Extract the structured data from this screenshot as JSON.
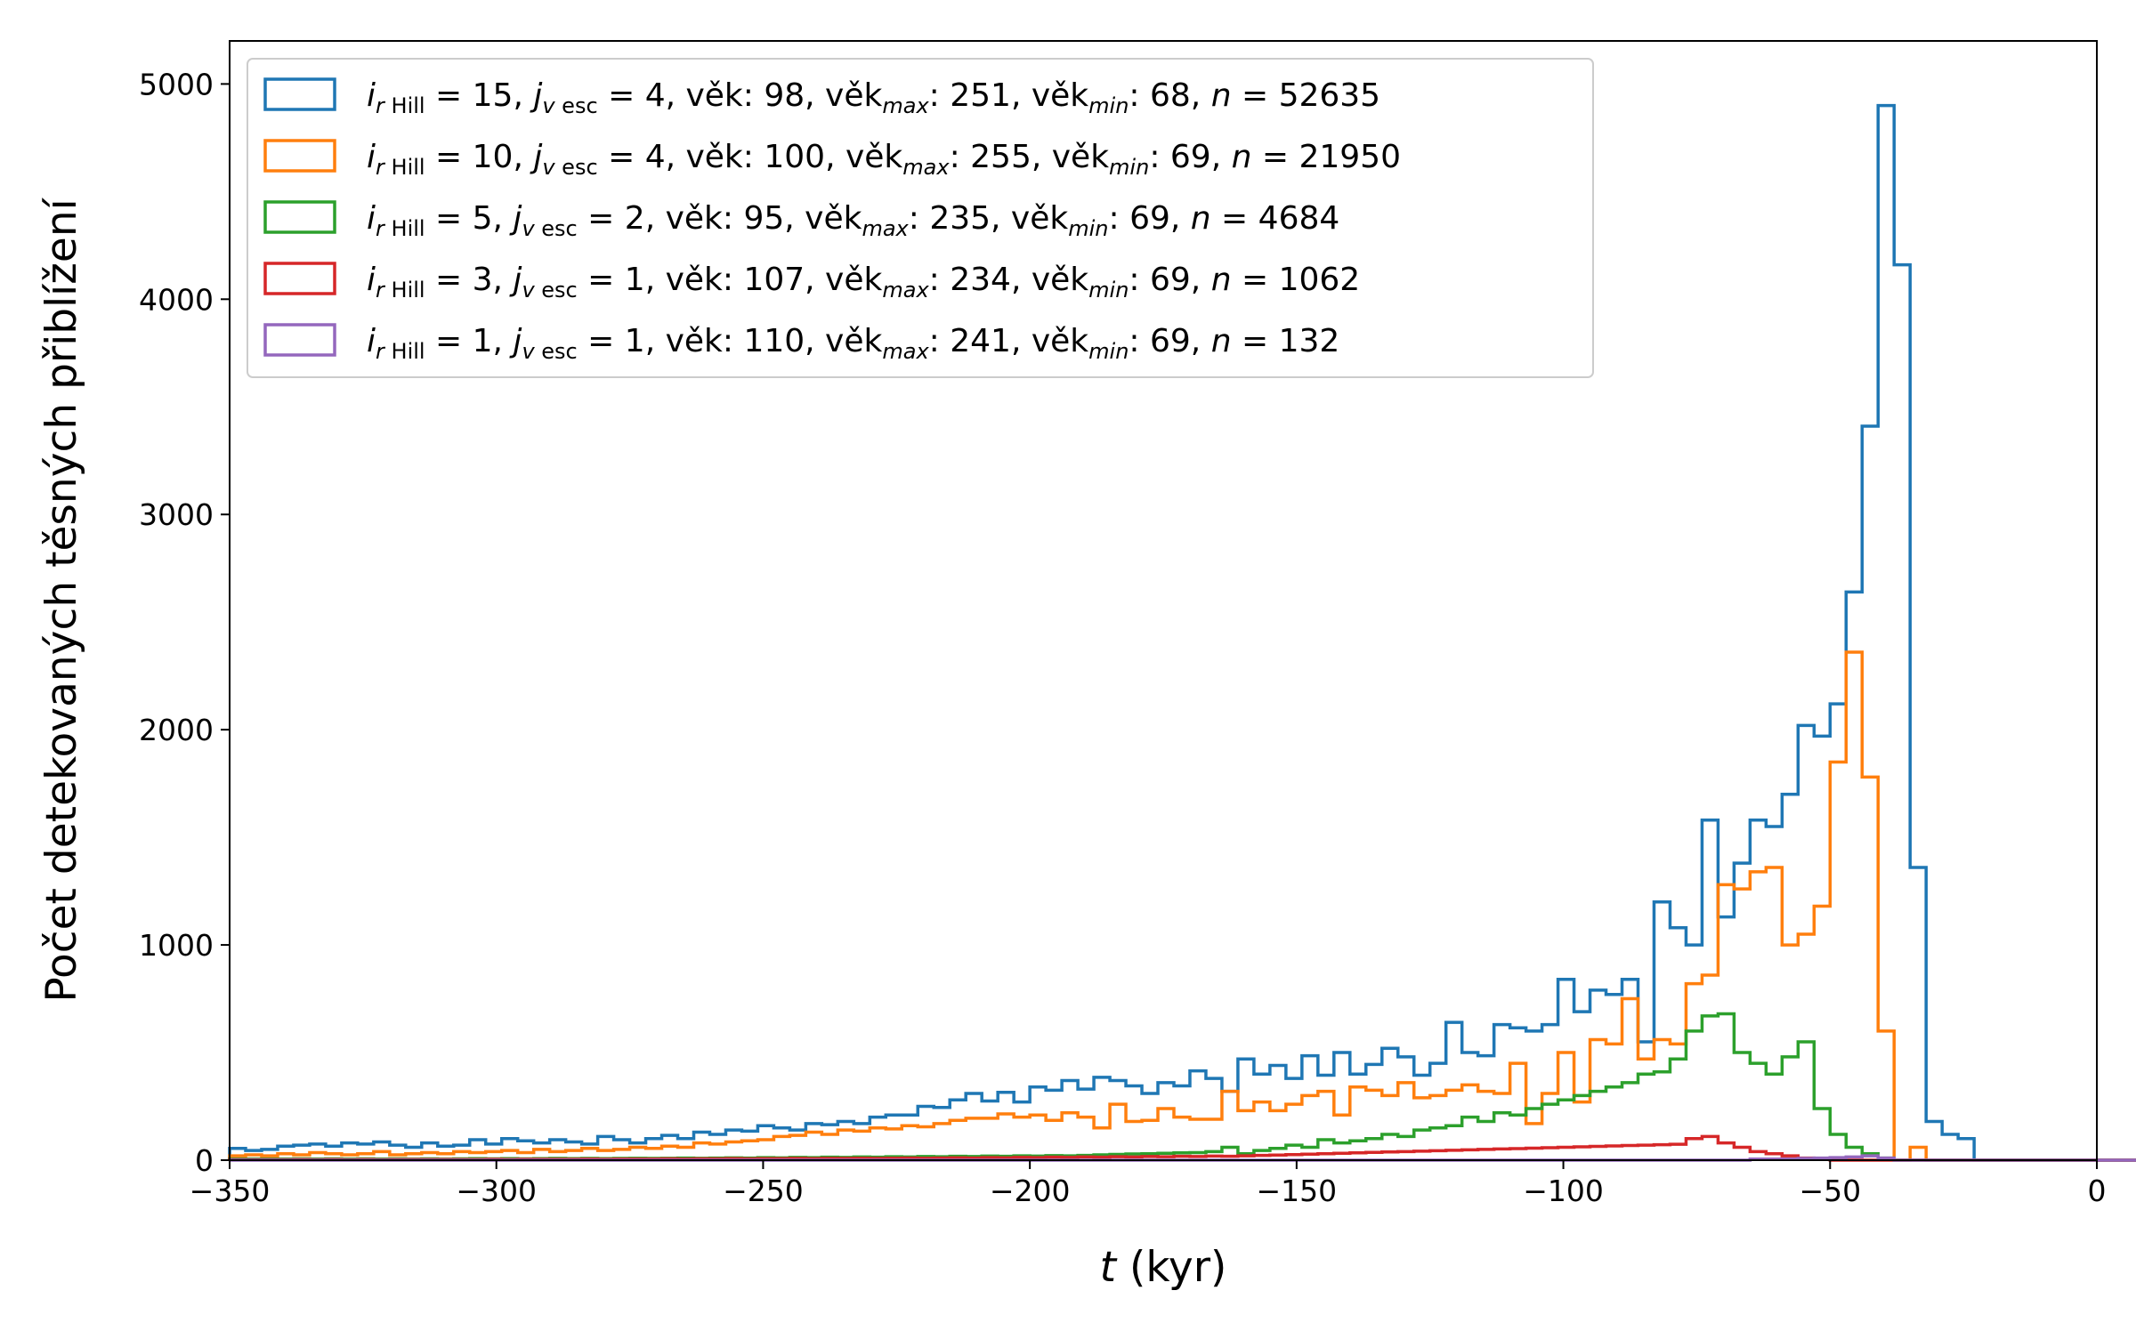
{
  "chart_data": {
    "type": "histogram",
    "xlabel_var": "t",
    "xlabel_unit": " (kyr)",
    "ylabel": "Počet detekovaných těsných přiblížení",
    "xlim": [
      -350,
      0
    ],
    "ylim": [
      0,
      5200
    ],
    "xticks": [
      -350,
      -300,
      -250,
      -200,
      -150,
      -100,
      -50,
      0
    ],
    "yticks": [
      0,
      1000,
      2000,
      3000,
      4000,
      5000
    ],
    "xtick_labels": [
      "−350",
      "−300",
      "−250",
      "−200",
      "−150",
      "−100",
      "−50",
      "0"
    ],
    "ytick_labels": [
      "0",
      "1000",
      "2000",
      "3000",
      "4000",
      "5000"
    ],
    "legend_position": "upper-left",
    "bin_start": -350,
    "bin_width": 3,
    "series": [
      {
        "name": "i_rHill = 15, j_vesc = 4, věk: 98, věk_max: 251, věk_min: 68, n = 52635",
        "i": "15",
        "j": "4",
        "vek": " 98",
        "vek_max": "251",
        "vek_min": "68",
        "n": "52635",
        "color": "#1f77b4",
        "values": [
          55,
          45,
          50,
          65,
          70,
          75,
          65,
          80,
          75,
          85,
          70,
          60,
          80,
          65,
          70,
          95,
          75,
          100,
          90,
          80,
          95,
          85,
          75,
          110,
          95,
          80,
          100,
          115,
          100,
          130,
          120,
          140,
          135,
          160,
          150,
          140,
          170,
          165,
          180,
          170,
          200,
          210,
          210,
          250,
          245,
          280,
          310,
          275,
          315,
          270,
          340,
          325,
          370,
          330,
          385,
          370,
          345,
          310,
          360,
          345,
          415,
          380,
          320,
          470,
          400,
          440,
          380,
          485,
          395,
          500,
          400,
          445,
          520,
          480,
          395,
          450,
          640,
          500,
          485,
          630,
          615,
          600,
          630,
          840,
          690,
          790,
          770,
          840,
          550,
          1200,
          1080,
          1000,
          1580,
          1130,
          1380,
          1580,
          1550,
          1700,
          2020,
          1970,
          2120,
          2640,
          3410,
          4900,
          4160,
          1360,
          180,
          120,
          100,
          0,
          0,
          0,
          0,
          0,
          0,
          0,
          0,
          0,
          0,
          0,
          0,
          0,
          0,
          0,
          0,
          0,
          0,
          0,
          0,
          0,
          0,
          0,
          0,
          0,
          0,
          0,
          0,
          0,
          0,
          0,
          0
        ]
      },
      {
        "name": "i_rHill = 10, j_vesc = 4, věk: 100, věk_max: 255, věk_min: 69, n = 21950",
        "i": "10",
        "j": "4",
        "vek": "100",
        "vek_max": "255",
        "vek_min": "69",
        "n": "21950",
        "color": "#ff7f0e",
        "values": [
          20,
          25,
          20,
          30,
          25,
          35,
          30,
          25,
          30,
          40,
          25,
          30,
          35,
          30,
          40,
          35,
          40,
          45,
          35,
          50,
          40,
          45,
          55,
          45,
          50,
          60,
          55,
          65,
          60,
          80,
          75,
          85,
          90,
          95,
          110,
          115,
          130,
          120,
          140,
          135,
          150,
          145,
          160,
          155,
          170,
          185,
          195,
          195,
          215,
          200,
          210,
          185,
          220,
          200,
          150,
          260,
          180,
          185,
          240,
          200,
          190,
          190,
          320,
          230,
          270,
          230,
          260,
          300,
          320,
          210,
          340,
          325,
          300,
          360,
          290,
          300,
          325,
          350,
          320,
          310,
          450,
          170,
          310,
          500,
          270,
          560,
          540,
          750,
          470,
          560,
          540,
          820,
          860,
          1280,
          1260,
          1340,
          1360,
          1000,
          1050,
          1180,
          1850,
          2360,
          1780,
          600,
          0,
          60,
          0,
          0,
          0,
          0,
          0,
          0,
          0,
          0,
          0,
          0,
          0,
          0,
          0,
          0,
          0,
          0,
          0,
          0,
          0,
          0,
          0,
          0,
          0,
          0,
          0,
          0,
          0,
          0,
          0,
          0,
          0,
          0,
          0,
          0,
          0,
          0,
          0,
          0,
          0,
          0
        ]
      },
      {
        "name": "i_rHill = 5, j_vesc = 2, věk: 95, věk_max: 235, věk_min: 69, n = 4684",
        "i": " 5",
        "j": "2",
        "vek": " 95",
        "vek_max": "235",
        "vek_min": "69",
        "n": "4684",
        "color": "#2ca02c",
        "values": [
          5,
          5,
          5,
          5,
          6,
          5,
          6,
          5,
          6,
          5,
          6,
          5,
          6,
          5,
          6,
          7,
          6,
          7,
          6,
          7,
          8,
          7,
          8,
          7,
          8,
          9,
          8,
          9,
          10,
          9,
          10,
          11,
          10,
          12,
          11,
          13,
          12,
          14,
          13,
          15,
          14,
          16,
          15,
          17,
          16,
          18,
          17,
          19,
          18,
          20,
          19,
          21,
          20,
          22,
          25,
          27,
          29,
          30,
          32,
          34,
          35,
          40,
          60,
          30,
          45,
          55,
          70,
          60,
          95,
          80,
          90,
          100,
          120,
          110,
          140,
          150,
          160,
          200,
          180,
          220,
          210,
          240,
          260,
          280,
          300,
          320,
          340,
          360,
          400,
          410,
          470,
          600,
          670,
          680,
          500,
          450,
          400,
          480,
          550,
          240,
          120,
          60,
          30,
          10,
          0,
          0,
          0,
          0,
          0,
          0,
          0,
          0,
          0,
          0,
          0,
          0,
          0,
          0,
          0,
          0,
          0,
          0,
          0,
          0,
          0,
          0,
          0,
          0,
          0,
          0,
          0,
          0,
          0,
          0,
          0,
          0,
          0,
          0,
          0,
          0,
          0,
          0,
          0,
          0
        ]
      },
      {
        "name": "i_rHill = 3, j_vesc = 1, věk: 107, věk_max: 234, věk_min: 69, n = 1062",
        "i": " 3",
        "j": "1",
        "vek": "107",
        "vek_max": "234",
        "vek_min": "69",
        "n": "1062",
        "color": "#d62728",
        "values": [
          2,
          2,
          2,
          2,
          3,
          2,
          3,
          2,
          3,
          2,
          3,
          3,
          3,
          3,
          3,
          3,
          4,
          3,
          4,
          4,
          4,
          4,
          5,
          4,
          5,
          5,
          5,
          6,
          5,
          6,
          6,
          7,
          6,
          7,
          7,
          8,
          7,
          8,
          8,
          9,
          8,
          9,
          10,
          9,
          10,
          11,
          10,
          12,
          11,
          13,
          12,
          14,
          13,
          15,
          14,
          16,
          15,
          17,
          16,
          18,
          17,
          19,
          18,
          20,
          22,
          24,
          26,
          28,
          30,
          32,
          34,
          36,
          38,
          40,
          42,
          44,
          46,
          48,
          50,
          52,
          54,
          56,
          58,
          60,
          62,
          64,
          66,
          68,
          70,
          72,
          74,
          100,
          110,
          80,
          60,
          40,
          30,
          20,
          10,
          5,
          0,
          0,
          0,
          0,
          0,
          0,
          0,
          0,
          0,
          0,
          0,
          0,
          0,
          0,
          0,
          0,
          0,
          0,
          0,
          0,
          0,
          0,
          0,
          0,
          0,
          0,
          0,
          0,
          0,
          0,
          0,
          0,
          0,
          0,
          0,
          0,
          0,
          0,
          0,
          0,
          0,
          0,
          0,
          0,
          0
        ]
      },
      {
        "name": "i_rHill = 1, j_vesc = 1, věk: 110, věk_max: 241, věk_min: 69, n = 132",
        "i": " 1",
        "j": "1",
        "vek": "110",
        "vek_max": "241",
        "vek_min": "69",
        "n": "132",
        "color": "#9467bd",
        "values": [
          0,
          0,
          0,
          0,
          0,
          0,
          0,
          0,
          0,
          0,
          0,
          0,
          0,
          0,
          0,
          0,
          0,
          0,
          0,
          0,
          0,
          0,
          0,
          0,
          0,
          0,
          0,
          0,
          0,
          0,
          0,
          0,
          0,
          0,
          0,
          0,
          0,
          0,
          0,
          0,
          0,
          0,
          0,
          0,
          0,
          0,
          0,
          0,
          0,
          0,
          0,
          0,
          0,
          0,
          0,
          0,
          0,
          0,
          0,
          0,
          0,
          0,
          0,
          0,
          0,
          0,
          0,
          0,
          0,
          0,
          0,
          0,
          0,
          0,
          0,
          0,
          0,
          0,
          0,
          0,
          0,
          0,
          0,
          0,
          0,
          0,
          0,
          0,
          0,
          0,
          0,
          0,
          0,
          0,
          0,
          5,
          5,
          5,
          8,
          10,
          12,
          15,
          20,
          10,
          0,
          0,
          0,
          0,
          0,
          0,
          0,
          0,
          0,
          0,
          0,
          0,
          0,
          0,
          0,
          0,
          0,
          0,
          0,
          0,
          0,
          0,
          0,
          0,
          0,
          0,
          0,
          0,
          0,
          0,
          0,
          0,
          0,
          0,
          0,
          0,
          0,
          0,
          0
        ]
      }
    ]
  }
}
